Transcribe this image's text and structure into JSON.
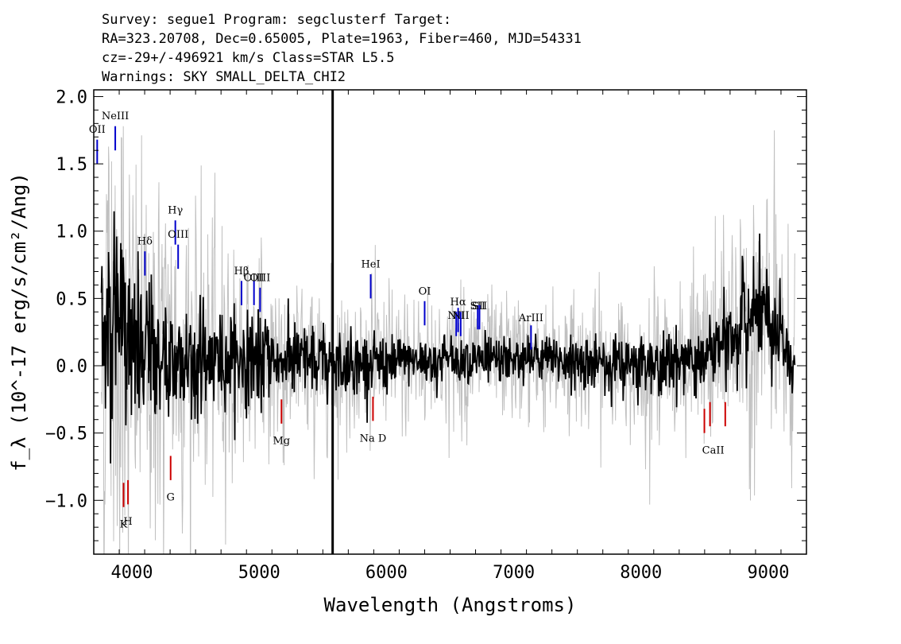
{
  "header": {
    "line1": "Survey: segue1 Program: segclusterf Target:",
    "line2": "RA=323.20708, Dec=0.65005, Plate=1963, Fiber=460, MJD=54331",
    "line3": "cz=-29+/-496921 km/s Class=STAR L5.5",
    "line4": "Warnings: SKY SMALL_DELTA_CHI2"
  },
  "chart_data": {
    "type": "line",
    "xlabel": "Wavelength (Angstroms)",
    "ylabel": "f_λ (10^-17 erg/s/cm²/Ang)",
    "xlim": [
      3700,
      9300
    ],
    "ylim": [
      -1.4,
      2.05
    ],
    "x_ticks": [
      4000,
      5000,
      6000,
      7000,
      8000,
      9000
    ],
    "y_ticks": [
      -1.0,
      -0.5,
      0.0,
      0.5,
      1.0,
      1.5,
      2.0
    ],
    "y_tick_labels": [
      "−1.0",
      "−0.5",
      "0.0",
      "0.5",
      "1.0",
      "1.5",
      "2.0"
    ],
    "series": [
      {
        "role": "error_envelope",
        "color": "#c0c0c0",
        "x": [
          3800,
          4000,
          4500,
          5000,
          5500,
          6000,
          6500,
          7000,
          7500,
          8000,
          8500,
          8800,
          9000,
          9200
        ],
        "y": [
          1.2,
          0.9,
          0.6,
          0.45,
          0.35,
          0.3,
          0.28,
          0.25,
          0.28,
          0.3,
          0.35,
          0.55,
          0.6,
          0.45
        ]
      },
      {
        "role": "flux",
        "color": "#000000",
        "x": [
          3750,
          3800,
          3900,
          4000,
          4200,
          4400,
          4600,
          5000,
          5500,
          6000,
          6500,
          7000,
          7500,
          8000,
          8500,
          8800,
          8950,
          9200
        ],
        "y": [
          0.1,
          0.3,
          0.4,
          0.1,
          0.05,
          0.05,
          0.05,
          0.05,
          0.02,
          0.02,
          0.05,
          0.05,
          0.03,
          0.0,
          0.05,
          0.3,
          0.4,
          0.0
        ]
      },
      {
        "role": "sky_spike",
        "color": "#000000",
        "x": [
          5577,
          5577
        ],
        "y": [
          -1.4,
          2.05
        ]
      }
    ],
    "emission_lines": [
      {
        "label": "OII",
        "x": 3727,
        "y1": 1.5,
        "y2": 1.68,
        "ly": 1.73
      },
      {
        "label": "NeIII",
        "x": 3869,
        "y1": 1.6,
        "y2": 1.78,
        "ly": 1.83
      },
      {
        "label": "Hδ",
        "x": 4102,
        "y1": 0.67,
        "y2": 0.85,
        "ly": 0.9
      },
      {
        "label": "Hγ",
        "x": 4341,
        "y1": 0.9,
        "y2": 1.08,
        "ly": 1.13
      },
      {
        "label": "OIII",
        "x": 4363,
        "y1": 0.72,
        "y2": 0.9,
        "ly": 0.95
      },
      {
        "label": "Hβ",
        "x": 4861,
        "y1": 0.45,
        "y2": 0.63,
        "ly": 0.68
      },
      {
        "label": "OIII",
        "x": 4959,
        "y1": 0.45,
        "y2": 0.63,
        "ly": 0.63
      },
      {
        "label": "OIII",
        "x": 5007,
        "y1": 0.4,
        "y2": 0.58,
        "ly": 0.63
      },
      {
        "label": "HeI",
        "x": 5876,
        "y1": 0.5,
        "y2": 0.68,
        "ly": 0.73
      },
      {
        "label": "OI",
        "x": 6300,
        "y1": 0.3,
        "y2": 0.48,
        "ly": 0.53
      },
      {
        "label": "NII",
        "x": 6548,
        "y1": 0.22,
        "y2": 0.4,
        "ly": 0.35
      },
      {
        "label": "Hα",
        "x": 6563,
        "y1": 0.25,
        "y2": 0.43,
        "ly": 0.45
      },
      {
        "label": "NII",
        "x": 6583,
        "y1": 0.22,
        "y2": 0.4,
        "ly": 0.35
      },
      {
        "label": "SII",
        "x": 6717,
        "y1": 0.27,
        "y2": 0.45,
        "ly": 0.42
      },
      {
        "label": "SII",
        "x": 6731,
        "y1": 0.27,
        "y2": 0.45,
        "ly": 0.42
      },
      {
        "label": "ArIII",
        "x": 7136,
        "y1": 0.12,
        "y2": 0.3,
        "ly": 0.33
      }
    ],
    "absorption_lines": [
      {
        "label": "K",
        "x": 3934,
        "y1": -1.05,
        "y2": -0.87,
        "ly": -1.12
      },
      {
        "label": "H",
        "x": 3969,
        "y1": -1.03,
        "y2": -0.85,
        "ly": -1.1
      },
      {
        "label": "G",
        "x": 4304,
        "y1": -0.85,
        "y2": -0.67,
        "ly": -0.92
      },
      {
        "label": "Mg",
        "x": 5175,
        "y1": -0.43,
        "y2": -0.25,
        "ly": -0.5
      },
      {
        "label": "Na D",
        "x": 5894,
        "y1": -0.41,
        "y2": -0.23,
        "ly": -0.48
      },
      {
        "label": "CaII",
        "x": 8498,
        "y1": -0.5,
        "y2": -0.32,
        "ly": -0.57
      },
      {
        "label": "CaII",
        "x": 8542,
        "y1": -0.45,
        "y2": -0.27,
        "ly": -0.57
      },
      {
        "label": "CaII",
        "x": 8662,
        "y1": -0.45,
        "y2": -0.27,
        "ly": -0.57
      }
    ],
    "emission_color": "#0000cc",
    "absorption_color": "#cc0000"
  }
}
